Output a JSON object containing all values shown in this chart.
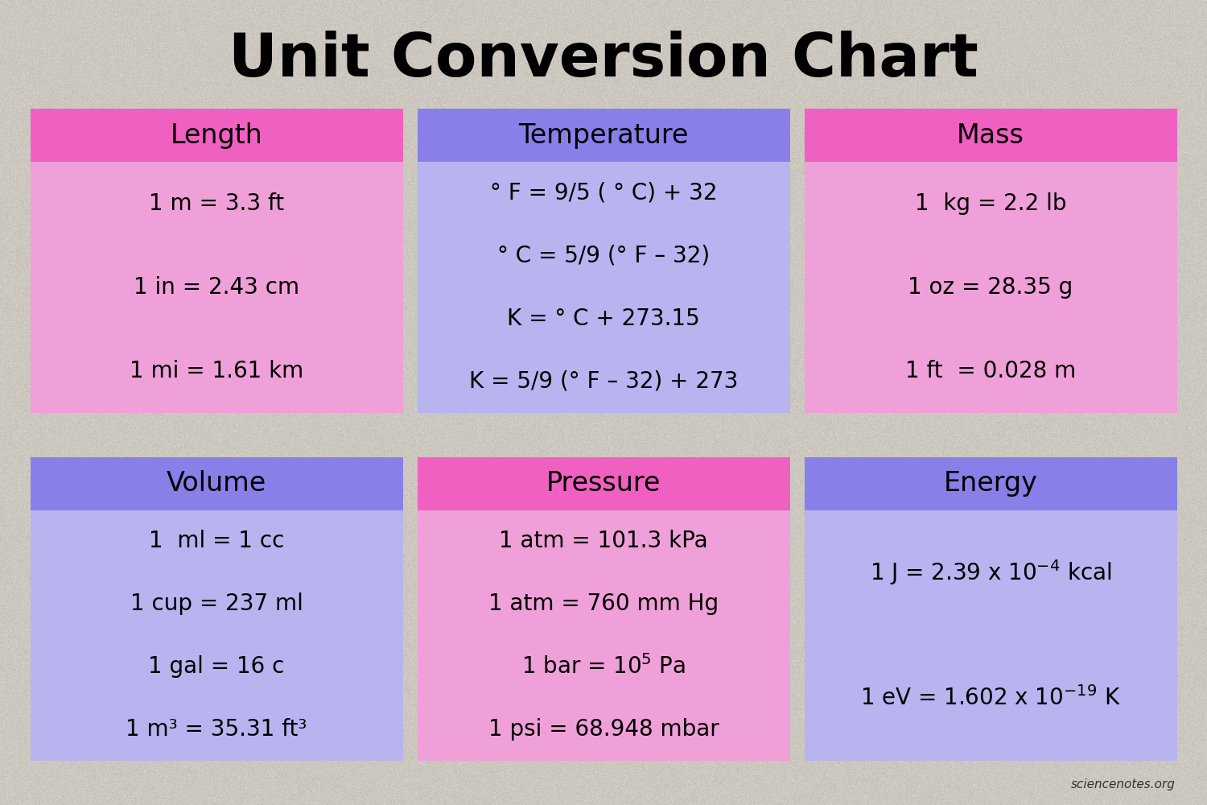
{
  "title": "Unit Conversion Chart",
  "background_color": "#ccc8c0",
  "title_fontsize": 54,
  "watermark": "sciencenotes.org",
  "cells": [
    {
      "row": 0,
      "col": 0,
      "header": "Length",
      "header_bg": "#f060c0",
      "body_bg": "#f0a0d8",
      "lines": [
        "1 m = 3.3 ft",
        "1 in = 2.43 cm",
        "1 mi = 1.61 km"
      ],
      "rich_lines": []
    },
    {
      "row": 0,
      "col": 1,
      "header": "Temperature",
      "header_bg": "#8880e8",
      "body_bg": "#b8b4f0",
      "lines": [
        "° F = 9/5 ( ° C) + 32",
        "° C = 5/9 (° F – 32)",
        "K = ° C + 273.15",
        "K = 5/9 (° F – 32) + 273"
      ],
      "rich_lines": []
    },
    {
      "row": 0,
      "col": 2,
      "header": "Mass",
      "header_bg": "#f060c0",
      "body_bg": "#f0a0d8",
      "lines": [
        "1  kg = 2.2 lb",
        "1 oz = 28.35 g",
        "1 ft  = 0.028 m"
      ],
      "rich_lines": []
    },
    {
      "row": 1,
      "col": 0,
      "header": "Volume",
      "header_bg": "#8880e8",
      "body_bg": "#b8b4f0",
      "lines": [
        "1  ml = 1 cc",
        "1 cup = 237 ml",
        "1 gal = 16 c",
        "1 m³ = 35.31 ft³"
      ],
      "rich_lines": []
    },
    {
      "row": 1,
      "col": 1,
      "header": "Pressure",
      "header_bg": "#f060c0",
      "body_bg": "#f0a0d8",
      "lines": [
        "1 atm = 101.3 kPa",
        "1 atm = 760 mm Hg",
        "1 bar = 10$^5$ Pa",
        "1 psi = 68.948 mbar"
      ],
      "rich_lines": []
    },
    {
      "row": 1,
      "col": 2,
      "header": "Energy",
      "header_bg": "#8880e8",
      "body_bg": "#b8b4f0",
      "lines": [
        "1 J = 2.39 x 10$^{-4}$ kcal",
        "1 eV = 1.602 x 10$^{-19}$ K"
      ],
      "rich_lines": []
    }
  ]
}
